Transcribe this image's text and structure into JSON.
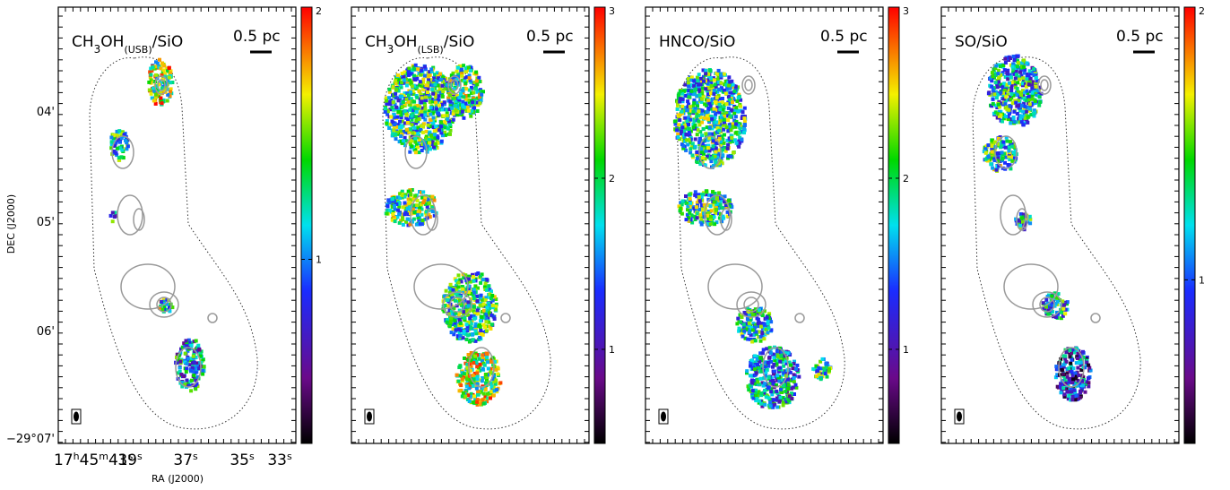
{
  "axes": {
    "ylabel": "DEC (J2000)",
    "xlabel": "RA (J2000)",
    "dec_ticks": [
      "04'",
      "05'",
      "06'",
      "−29°07'"
    ],
    "ra_ticks": [
      [
        "17",
        "h",
        "45",
        "m",
        "41",
        "s"
      ],
      [
        "39",
        "s"
      ],
      [
        "37",
        "s"
      ],
      [
        "35",
        "s"
      ],
      [
        "33",
        "s"
      ]
    ]
  },
  "panels": [
    {
      "title_parts": [
        "CH",
        "3",
        "OH",
        "(USB)",
        "/SiO"
      ],
      "scale_label": "0.5 pc",
      "colorbar": {
        "lim": [
          0.27,
          2
        ],
        "ticks": [
          1,
          2
        ]
      }
    },
    {
      "title_parts": [
        "CH",
        "3",
        "OH",
        "(LSB)",
        "/SiO"
      ],
      "scale_label": "0.5 pc",
      "colorbar": {
        "lim": [
          0.45,
          3
        ],
        "ticks": [
          1,
          2,
          3
        ]
      }
    },
    {
      "title_parts": [
        "HNCO/SiO"
      ],
      "scale_label": "0.5 pc",
      "colorbar": {
        "lim": [
          0.45,
          3
        ],
        "ticks": [
          1,
          2,
          3
        ]
      }
    },
    {
      "title_parts": [
        "SO/SiO"
      ],
      "scale_label": "0.5 pc",
      "colorbar": {
        "lim": [
          0.4,
          2
        ],
        "ticks": [
          1,
          2
        ]
      }
    }
  ]
}
